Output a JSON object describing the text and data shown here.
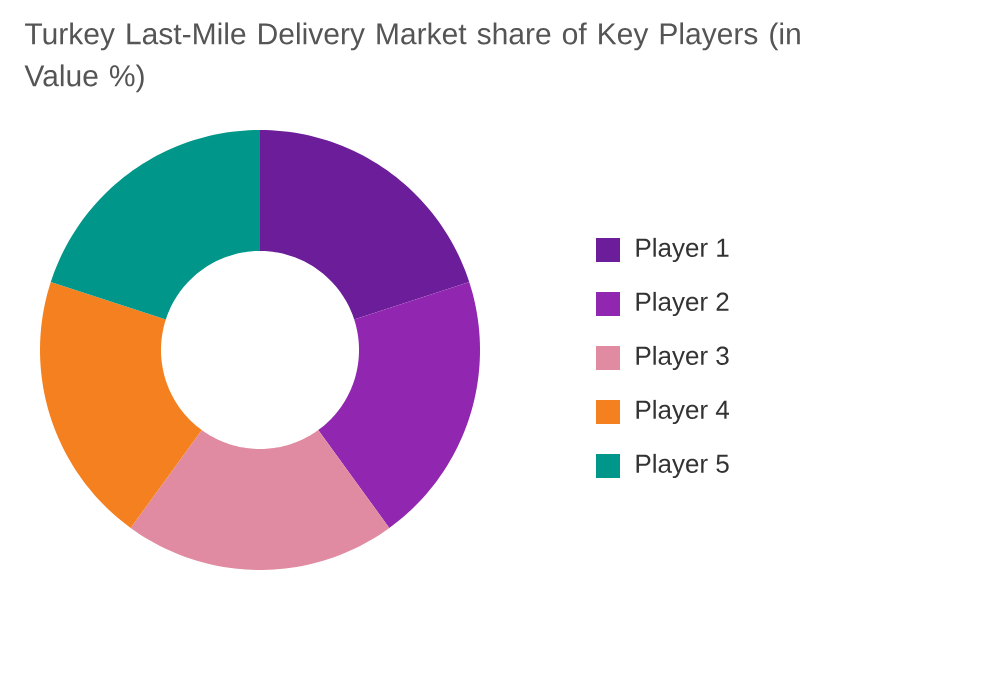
{
  "chart_data": {
    "type": "donut",
    "title": "Turkey Last-Mile Delivery Market share of Key Players (in Value %)",
    "categories": [
      "Player 1",
      "Player 2",
      "Player 3",
      "Player 4",
      "Player 5"
    ],
    "values": [
      20,
      20,
      20,
      20,
      20
    ],
    "colors": [
      "#6c1d9a",
      "#9127b0",
      "#e08ba1",
      "#f58020",
      "#00968a"
    ],
    "legend": "right"
  }
}
